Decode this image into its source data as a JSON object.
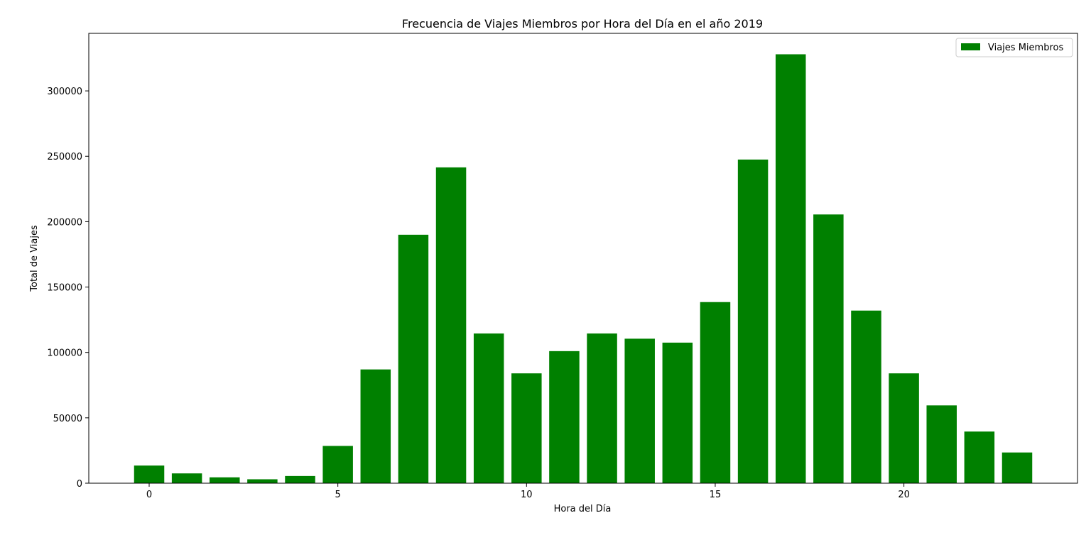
{
  "chart_data": {
    "type": "bar",
    "title": "Frecuencia de Viajes Miembros por Hora del Día en el año 2019",
    "xlabel": "Hora del Día",
    "ylabel": "Total de Viajes",
    "x": [
      0,
      1,
      2,
      3,
      4,
      5,
      6,
      7,
      8,
      9,
      10,
      11,
      12,
      13,
      14,
      15,
      16,
      17,
      18,
      19,
      20,
      21,
      22,
      23
    ],
    "series": [
      {
        "name": "Viajes Miembros",
        "color": "#008000",
        "values": [
          13500,
          7500,
          4500,
          3000,
          5500,
          28500,
          87000,
          190000,
          241500,
          114500,
          84000,
          101000,
          114500,
          110500,
          107500,
          138500,
          247500,
          328000,
          205500,
          132000,
          84000,
          59500,
          39500,
          23500
        ]
      }
    ],
    "xticks": [
      0,
      5,
      10,
      15,
      20
    ],
    "yticks": [
      0,
      50000,
      100000,
      150000,
      200000,
      250000,
      300000
    ],
    "xlim": [
      -1.6,
      24.6
    ],
    "ylim": [
      0,
      344000
    ],
    "legend_position": "top-right",
    "grid": false
  }
}
